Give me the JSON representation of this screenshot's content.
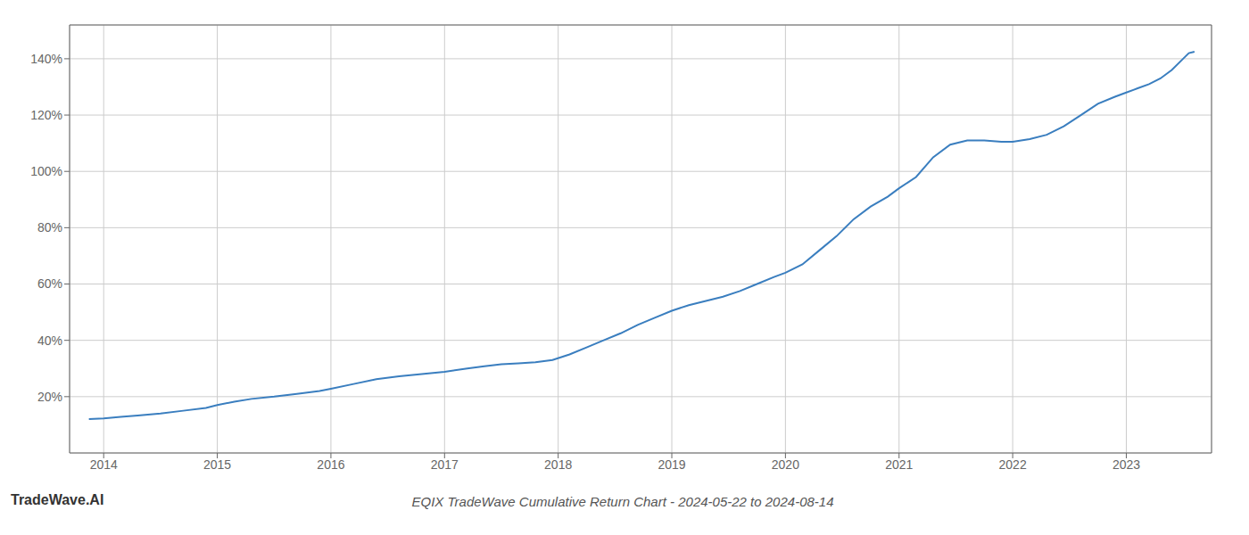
{
  "chart_data": {
    "type": "line",
    "title": "EQIX TradeWave Cumulative Return Chart - 2024-05-22 to 2024-08-14",
    "annotations": [
      "TradeWave.AI"
    ],
    "color": "#3a7ebf",
    "grid": true,
    "x": [
      2013.87,
      2014.0,
      2014.15,
      2014.3,
      2014.5,
      2014.7,
      2014.9,
      2015.0,
      2015.15,
      2015.3,
      2015.5,
      2015.7,
      2015.9,
      2016.0,
      2016.2,
      2016.4,
      2016.6,
      2016.8,
      2017.0,
      2017.2,
      2017.35,
      2017.5,
      2017.65,
      2017.8,
      2017.95,
      2018.1,
      2018.25,
      2018.4,
      2018.55,
      2018.7,
      2018.85,
      2019.0,
      2019.15,
      2019.3,
      2019.45,
      2019.6,
      2019.75,
      2019.9,
      2020.0,
      2020.15,
      2020.3,
      2020.45,
      2020.6,
      2020.75,
      2020.9,
      2021.0,
      2021.15,
      2021.3,
      2021.45,
      2021.6,
      2021.75,
      2021.9,
      2022.0,
      2022.15,
      2022.3,
      2022.45,
      2022.6,
      2022.75,
      2022.9,
      2023.0,
      2023.1,
      2023.2,
      2023.3,
      2023.4,
      2023.5,
      2023.55,
      2023.6
    ],
    "values": [
      0.12,
      0.123,
      0.128,
      0.133,
      0.14,
      0.15,
      0.16,
      0.17,
      0.182,
      0.192,
      0.2,
      0.21,
      0.22,
      0.228,
      0.245,
      0.262,
      0.272,
      0.28,
      0.288,
      0.3,
      0.308,
      0.315,
      0.318,
      0.322,
      0.33,
      0.35,
      0.375,
      0.4,
      0.425,
      0.455,
      0.48,
      0.505,
      0.525,
      0.54,
      0.555,
      0.575,
      0.6,
      0.625,
      0.64,
      0.67,
      0.72,
      0.77,
      0.83,
      0.875,
      0.91,
      0.94,
      0.98,
      1.05,
      1.095,
      1.11,
      1.11,
      1.105,
      1.105,
      1.115,
      1.13,
      1.16,
      1.2,
      1.24,
      1.265,
      1.28,
      1.295,
      1.31,
      1.33,
      1.36,
      1.4,
      1.42,
      1.425
    ],
    "xlim": [
      2013.7,
      2023.75
    ],
    "xticks": [
      2014,
      2015,
      2016,
      2017,
      2018,
      2019,
      2020,
      2021,
      2022,
      2023
    ],
    "ylim": [
      0.0,
      1.52
    ],
    "yticks": [
      {
        "value": 0.2,
        "label": "20%"
      },
      {
        "value": 0.4,
        "label": "40%"
      },
      {
        "value": 0.6,
        "label": "60%"
      },
      {
        "value": 0.8,
        "label": "80%"
      },
      {
        "value": 1.0,
        "label": "100%"
      },
      {
        "value": 1.2,
        "label": "120%"
      },
      {
        "value": 1.4,
        "label": "140%"
      }
    ]
  }
}
